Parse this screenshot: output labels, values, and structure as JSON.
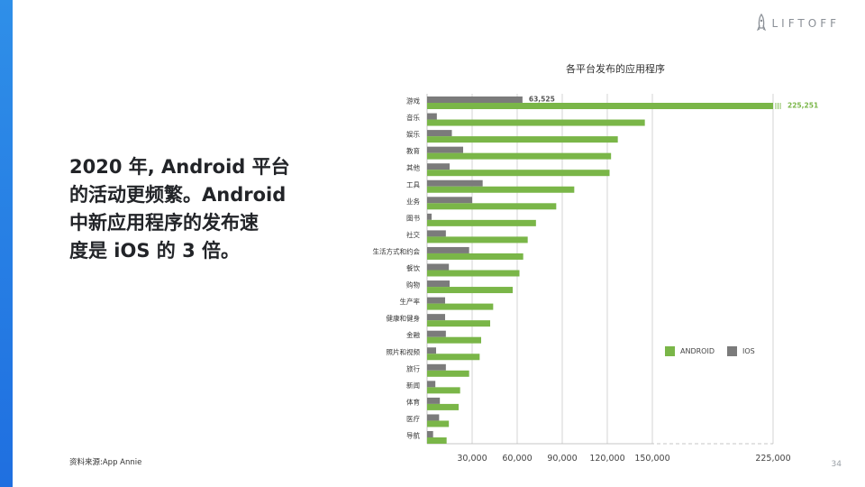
{
  "logo": {
    "text": "LIFTOFF",
    "icon": "rocket-icon"
  },
  "headline": "2020 年, Android 平台\n的活动更频繁。Android\n中新应用程序的发布速\n度是 iOS 的 3 倍。",
  "source": "资料来源:App Annie",
  "page_number": "34",
  "colors": {
    "android": "#7ab648",
    "ios": "#7b7b7b",
    "accent": "#1f6fe0"
  },
  "chart_data": {
    "type": "bar",
    "orientation": "horizontal",
    "title": "各平台发布的应用程序",
    "categories": [
      "游戏",
      "音乐",
      "娱乐",
      "教育",
      "其他",
      "工具",
      "业务",
      "图书",
      "社交",
      "生活方式和约会",
      "餐饮",
      "购物",
      "生产率",
      "健康和健身",
      "金融",
      "照片和视频",
      "旅行",
      "新闻",
      "体育",
      "医疗",
      "导航"
    ],
    "series": [
      {
        "name": "IOS",
        "values": [
          63525,
          6500,
          16500,
          24000,
          15000,
          37000,
          30000,
          3000,
          12500,
          28000,
          14500,
          15000,
          12000,
          12000,
          12500,
          6000,
          12500,
          5500,
          8500,
          8000,
          4000
        ]
      },
      {
        "name": "ANDROID",
        "values": [
          225251,
          145000,
          127000,
          122500,
          121500,
          98000,
          86000,
          72500,
          67000,
          64000,
          61500,
          57000,
          44000,
          42000,
          36000,
          35000,
          28000,
          22000,
          21000,
          14500,
          13000
        ]
      }
    ],
    "data_labels": {
      "IOS_0": "63,525",
      "ANDROID_0": "225,251"
    },
    "x_ticks": [
      "30,000",
      "60,000",
      "90,000",
      "120,000",
      "150,000",
      "225,000"
    ],
    "x_tick_values": [
      30000,
      60000,
      90000,
      120000,
      150000,
      225000
    ],
    "axis_break": "between 150,000 and 225,000",
    "grid": true,
    "legend_position": "right"
  }
}
